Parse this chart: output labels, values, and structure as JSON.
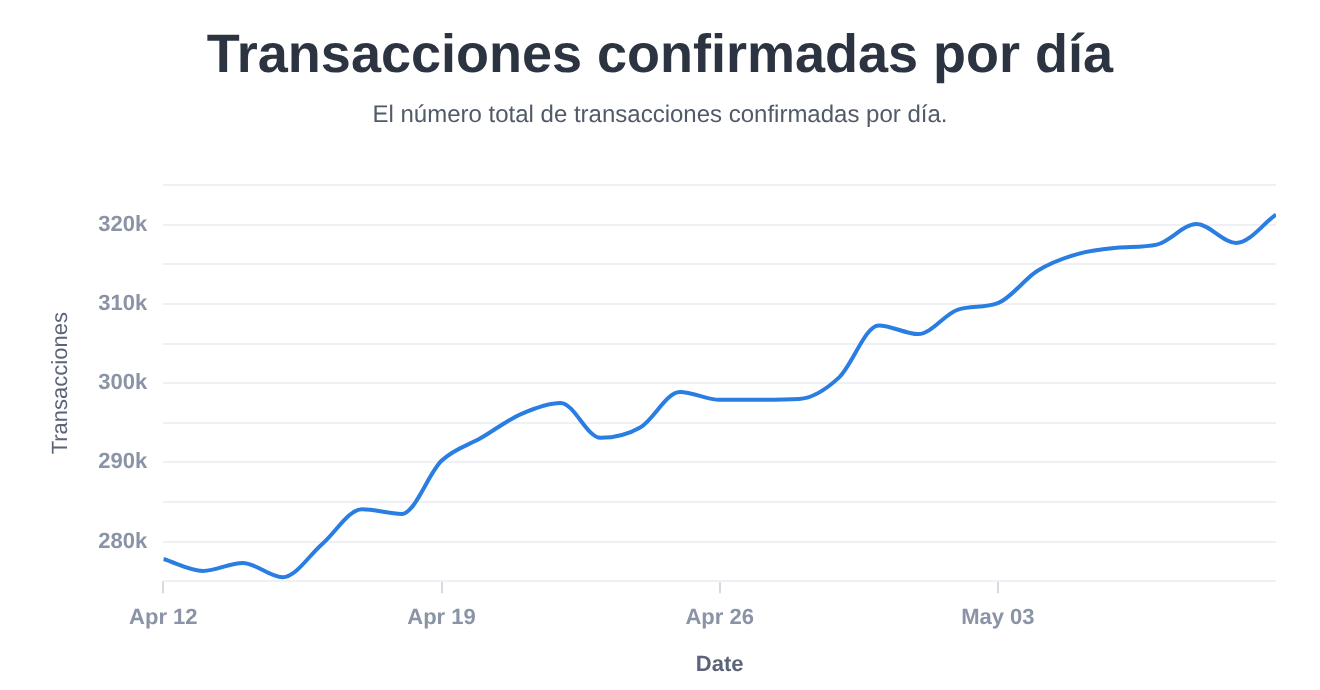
{
  "chart_data": {
    "type": "line",
    "title": "Transacciones confirmadas por día",
    "subtitle": "El número total de transacciones confirmadas por día.",
    "xlabel": "Date",
    "ylabel": "Transacciones",
    "x": [
      "--04-12",
      "--04-13",
      "--04-14",
      "--04-15",
      "--04-16",
      "--04-17",
      "--04-18",
      "--04-19",
      "--04-20",
      "--04-21",
      "--04-22",
      "--04-23",
      "--04-24",
      "--04-25",
      "--04-26",
      "--04-27",
      "--04-28",
      "--04-29",
      "--04-30",
      "--05-01",
      "--05-02",
      "--05-03",
      "--05-04",
      "--05-05",
      "--05-06",
      "--05-07",
      "--05-08",
      "--05-09",
      "--05-10"
    ],
    "series": [
      {
        "color": "#2a7de1",
        "values": [
          277800,
          276300,
          277300,
          275500,
          279700,
          284100,
          283500,
          290200,
          293100,
          296100,
          297500,
          293100,
          294400,
          298900,
          297900,
          297900,
          298000,
          300700,
          307300,
          306200,
          309300,
          310100,
          314200,
          316300,
          317100,
          317500,
          320100,
          317700,
          321300
        ]
      }
    ],
    "xlim": [
      "--04-12",
      "--05-10"
    ],
    "xticks": [
      {
        "value": "--04-12",
        "label": "Apr 12"
      },
      {
        "value": "--04-19",
        "label": "Apr 19"
      },
      {
        "value": "--04-26",
        "label": "Apr 26"
      },
      {
        "value": "--05-03",
        "label": "May 03"
      }
    ],
    "ylim": [
      275000,
      325000
    ],
    "yticks": [
      {
        "value": 275000,
        "label": null
      },
      {
        "value": 280000,
        "label": "280k"
      },
      {
        "value": 285000,
        "label": null
      },
      {
        "value": 290000,
        "label": "290k"
      },
      {
        "value": 295000,
        "label": null
      },
      {
        "value": 300000,
        "label": "300k"
      },
      {
        "value": 305000,
        "label": null
      },
      {
        "value": 310000,
        "label": "310k"
      },
      {
        "value": 315000,
        "label": null
      },
      {
        "value": 320000,
        "label": "320k"
      },
      {
        "value": 325000,
        "label": null
      }
    ],
    "grid": "y"
  }
}
